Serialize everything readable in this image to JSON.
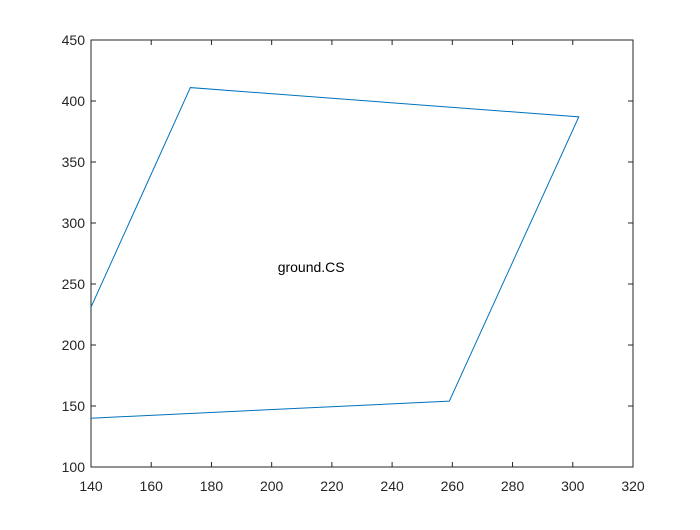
{
  "chart_data": {
    "type": "line",
    "title": "",
    "xlabel": "",
    "ylabel": "",
    "xlim": [
      140,
      320
    ],
    "ylim": [
      100,
      450
    ],
    "xticks": [
      140,
      160,
      180,
      200,
      220,
      240,
      260,
      280,
      300,
      320
    ],
    "yticks": [
      100,
      150,
      200,
      250,
      300,
      350,
      400,
      450
    ],
    "grid": false,
    "legend": "none",
    "series": [
      {
        "color": "#0072bd",
        "x": [
          140,
          173,
          302,
          259,
          140
        ],
        "y": [
          231,
          411,
          387,
          154,
          140
        ]
      }
    ],
    "annotations": [
      {
        "text": "ground.CS",
        "x": 202,
        "y": 260
      }
    ],
    "colors": {
      "axis": "#262626",
      "background": "#ffffff",
      "line": "#0072bd"
    }
  }
}
